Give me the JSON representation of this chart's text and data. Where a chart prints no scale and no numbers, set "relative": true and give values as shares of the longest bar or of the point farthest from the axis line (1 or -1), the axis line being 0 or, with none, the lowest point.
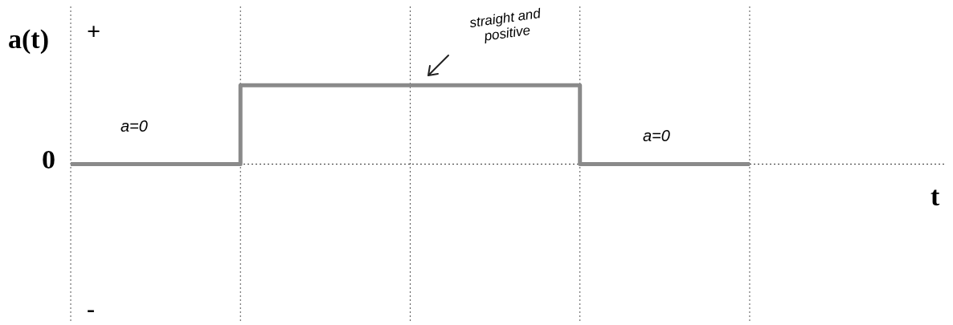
{
  "chart_data": {
    "type": "step",
    "relative": true,
    "ylabel": "a(t)",
    "categories": [
      null,
      null,
      null,
      null,
      null,
      null,
      null,
      null,
      null,
      null,
      null,
      null,
      null,
      null,
      null,
      null,
      null
    ],
    "series": [
      {
        "color": "#8a8a8a",
        "values": [
          0,
          0,
          0,
          0,
          1,
          1,
          1,
          1,
          1,
          1,
          1,
          1,
          0,
          0,
          0,
          0,
          0
        ]
      }
    ],
    "grid": "x",
    "marker": "none",
    "line_style": "solid",
    "annotations": [
      "+",
      "0",
      "-",
      "a=0",
      "straight and positive",
      "a=0",
      "t"
    ]
  }
}
